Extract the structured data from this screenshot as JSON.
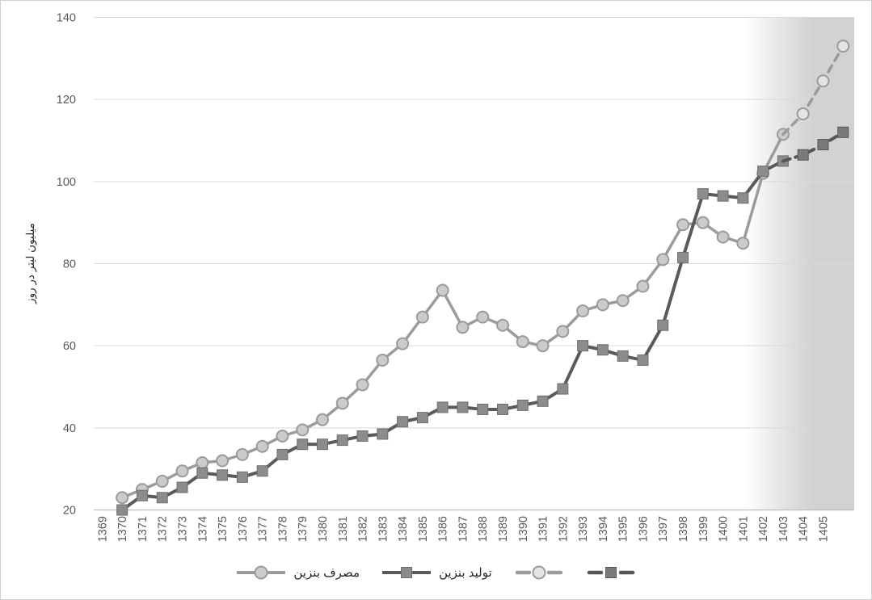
{
  "window": {
    "background": "#ffffff",
    "border_color": "#cfcfcf"
  },
  "y_axis": {
    "title": "میلیون لیتر در روز",
    "ticks": [
      20,
      40,
      60,
      80,
      100,
      120,
      140
    ],
    "tick_label_color": "#595959"
  },
  "x_axis": {
    "labels": [
      "1369",
      "1370",
      "1371",
      "1372",
      "1373",
      "1374",
      "1375",
      "1376",
      "1377",
      "1378",
      "1379",
      "1380",
      "1381",
      "1382",
      "1383",
      "1384",
      "1385",
      "1386",
      "1387",
      "1388",
      "1389",
      "1390",
      "1391",
      "1392",
      "1393",
      "1394",
      "1395",
      "1396",
      "1397",
      "1398",
      "1399",
      "1400",
      "1401",
      "1402",
      "1403",
      "1404",
      "1405"
    ],
    "tick_label_color": "#595959"
  },
  "legend": [
    {
      "label": "مصرف بنزین",
      "marker": "circle",
      "line_style": "solid"
    },
    {
      "label": "تولید بنزین",
      "marker": "square",
      "line_style": "solid"
    },
    {
      "label": "",
      "marker": "circle",
      "line_style": "dashed"
    },
    {
      "label": "",
      "marker": "square",
      "line_style": "dashed"
    }
  ],
  "colors": {
    "gridline": "#d9d9d9",
    "axis_line": "#bfbfbf",
    "forecast_band": "#d2d2d2",
    "consumption_line": "#9b9b9b",
    "production_line": "#5a5a5a"
  },
  "chart_data": {
    "type": "line",
    "title": "",
    "ylabel": "میلیون لیتر در روز",
    "ylim": [
      20,
      140
    ],
    "y_ticks": [
      20,
      40,
      60,
      80,
      100,
      120,
      140
    ],
    "grid": "horizontal",
    "legend_position": "bottom",
    "forecast_band_years": [
      1401,
      1406.5
    ],
    "series": [
      {
        "name": "مصرف بنزین",
        "marker": "circle",
        "line_style": "solid",
        "color": "#9b9b9b",
        "marker_fill": "#cbcbcb",
        "marker_stroke": "#9b9b9b",
        "line_width": 3.5,
        "dash": "",
        "markers_from_index": 0,
        "years": [
          1370,
          1371,
          1372,
          1373,
          1374,
          1375,
          1376,
          1377,
          1378,
          1379,
          1380,
          1381,
          1382,
          1383,
          1384,
          1385,
          1386,
          1387,
          1388,
          1389,
          1390,
          1391,
          1392,
          1393,
          1394,
          1395,
          1396,
          1397,
          1398,
          1399,
          1400,
          1401,
          1402,
          1403
        ],
        "values": [
          23,
          25,
          27,
          29.5,
          31.5,
          32,
          33.5,
          35.5,
          38,
          39.5,
          42,
          46,
          50.5,
          56.5,
          60.5,
          67,
          73.5,
          64.5,
          67,
          65,
          61,
          60,
          63.5,
          68.5,
          70,
          71,
          74.5,
          81,
          89.5,
          90,
          86.5,
          85,
          102,
          111.5
        ]
      },
      {
        "name": "تولید بنزین",
        "marker": "square",
        "line_style": "solid",
        "color": "#5a5a5a",
        "marker_fill": "#8c8c8c",
        "marker_stroke": "#6e6e6e",
        "line_width": 4,
        "dash": "",
        "markers_from_index": 0,
        "years": [
          1370,
          1371,
          1372,
          1373,
          1374,
          1375,
          1376,
          1377,
          1378,
          1379,
          1380,
          1381,
          1382,
          1383,
          1384,
          1385,
          1386,
          1387,
          1388,
          1389,
          1390,
          1391,
          1392,
          1393,
          1394,
          1395,
          1396,
          1397,
          1398,
          1399,
          1400,
          1401,
          1402,
          1403
        ],
        "values": [
          20,
          23.5,
          23,
          25.5,
          29,
          28.5,
          28,
          29.5,
          33.5,
          36,
          36,
          37,
          38,
          38.5,
          41.5,
          42.5,
          45,
          45,
          44.5,
          44.5,
          45.5,
          46.5,
          49.5,
          60,
          59,
          57.5,
          56.5,
          65,
          81.5,
          97,
          96.5,
          96,
          102.5,
          105
        ]
      },
      {
        "name": "",
        "marker": "circle",
        "line_style": "dashed",
        "color": "#9b9b9b",
        "marker_fill": "#e4e4e4",
        "marker_stroke": "#9b9b9b",
        "line_width": 3.5,
        "dash": "9 7",
        "markers_from_index": 1,
        "years": [
          1403,
          1404,
          1405,
          1406
        ],
        "values": [
          111.5,
          116.5,
          124.5,
          133
        ]
      },
      {
        "name": "",
        "marker": "square",
        "line_style": "dashed",
        "color": "#565656",
        "marker_fill": "#7a7a7a",
        "marker_stroke": "#565656",
        "line_width": 4,
        "dash": "9 7",
        "markers_from_index": 1,
        "years": [
          1403,
          1404,
          1405,
          1406
        ],
        "values": [
          105,
          106.5,
          109,
          112
        ]
      }
    ]
  }
}
